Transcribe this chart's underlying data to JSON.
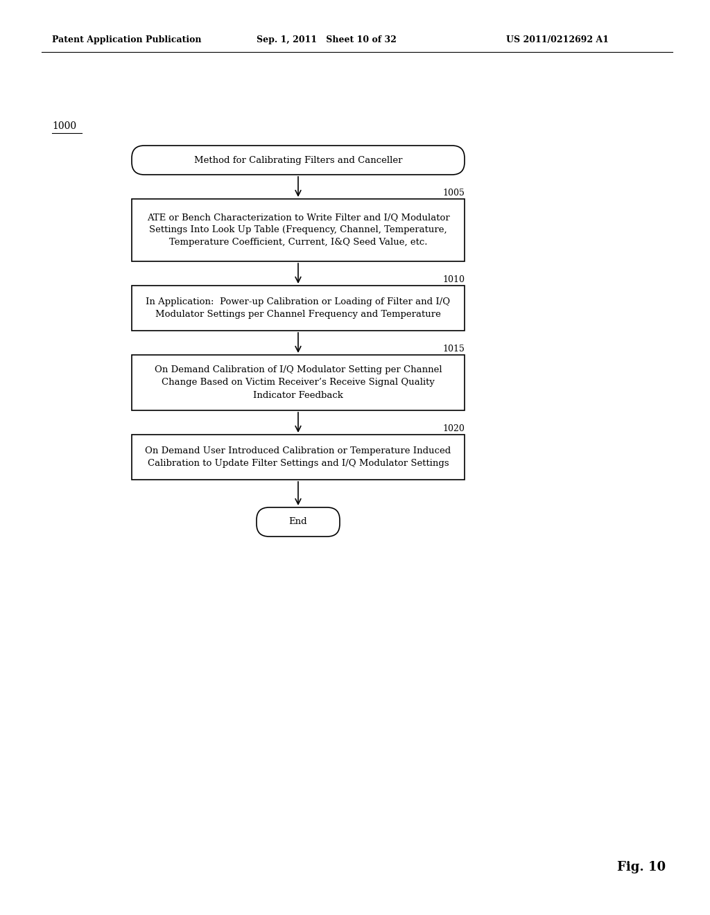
{
  "background_color": "#ffffff",
  "header_left": "Patent Application Publication",
  "header_mid": "Sep. 1, 2011   Sheet 10 of 32",
  "header_right": "US 2011/0212692 A1",
  "fig_label": "Fig. 10",
  "diagram_label": "1000",
  "start_box_text": "Method for Calibrating Filters and Canceller",
  "boxes": [
    {
      "id": "1005",
      "label": "1005",
      "text": "ATE or Bench Characterization to Write Filter and I/Q Modulator\nSettings Into Look Up Table (Frequency, Channel, Temperature,\nTemperature Coefficient, Current, I&Q Seed Value, etc.",
      "style": "rect"
    },
    {
      "id": "1010",
      "label": "1010",
      "text": "In Application:  Power-up Calibration or Loading of Filter and I/Q\nModulator Settings per Channel Frequency and Temperature",
      "style": "rect"
    },
    {
      "id": "1015",
      "label": "1015",
      "text": "On Demand Calibration of I/Q Modulator Setting per Channel\nChange Based on Victim Receiver’s Receive Signal Quality\nIndicator Feedback",
      "style": "rect"
    },
    {
      "id": "1020",
      "label": "1020",
      "text": "On Demand User Introduced Calibration or Temperature Induced\nCalibration to Update Filter Settings and I/Q Modulator Settings",
      "style": "rect"
    }
  ],
  "end_box_text": "End",
  "box_color": "#ffffff",
  "box_edge_color": "#000000",
  "text_color": "#000000",
  "arrow_color": "#000000",
  "font_size_header": 9,
  "font_size_body": 9.5,
  "font_size_label": 9,
  "font_size_fig": 13
}
